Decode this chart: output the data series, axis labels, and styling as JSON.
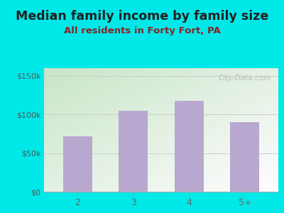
{
  "title": "Median family income by family size",
  "subtitle": "All residents in Forty Fort, PA",
  "categories": [
    "2",
    "3",
    "4",
    "5+"
  ],
  "values": [
    72000,
    105000,
    118000,
    90000
  ],
  "bar_color": "#b8a8d0",
  "title_color": "#222222",
  "subtitle_color": "#8b2222",
  "bg_color": "#00e8e8",
  "yticks": [
    0,
    50000,
    100000,
    150000
  ],
  "ytick_labels": [
    "$0",
    "$50k",
    "$100k",
    "$150k"
  ],
  "ylim": [
    0,
    160000
  ],
  "tick_label_color": "#555555",
  "xticklabel_color": "#666666",
  "watermark": "City-Data.com",
  "title_fontsize": 12.5,
  "subtitle_fontsize": 9.5,
  "gradient_left": "#c8e6c5",
  "gradient_right": "#f0f8f0"
}
